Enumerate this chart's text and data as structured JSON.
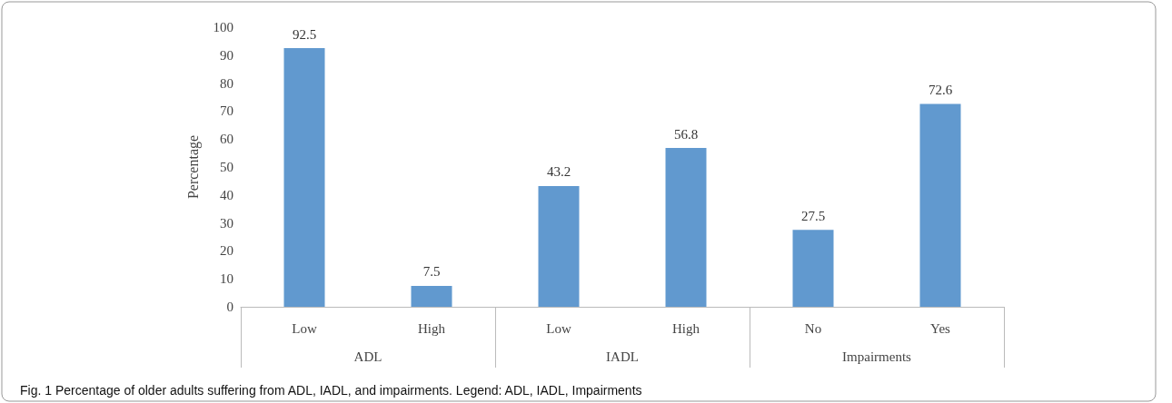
{
  "chart_data": {
    "type": "bar",
    "ylabel": "Percentage",
    "categories": [
      "Low",
      "High",
      "Low",
      "High",
      "No",
      "Yes"
    ],
    "values": [
      92.5,
      7.5,
      43.2,
      56.8,
      27.5,
      72.6
    ],
    "color": "#6199cf",
    "ylim": [
      0,
      100
    ],
    "yticks": [
      0,
      10,
      20,
      30,
      40,
      50,
      60,
      70,
      80,
      90,
      100
    ],
    "data_labels": true,
    "grid": false,
    "annotations": [
      "ADL",
      "IADL",
      "Impairments",
      "Fig. 1 Percentage of older adults suffering from ADL, IADL, and impairments. Legend: ADL, IADL, Impairments"
    ]
  }
}
